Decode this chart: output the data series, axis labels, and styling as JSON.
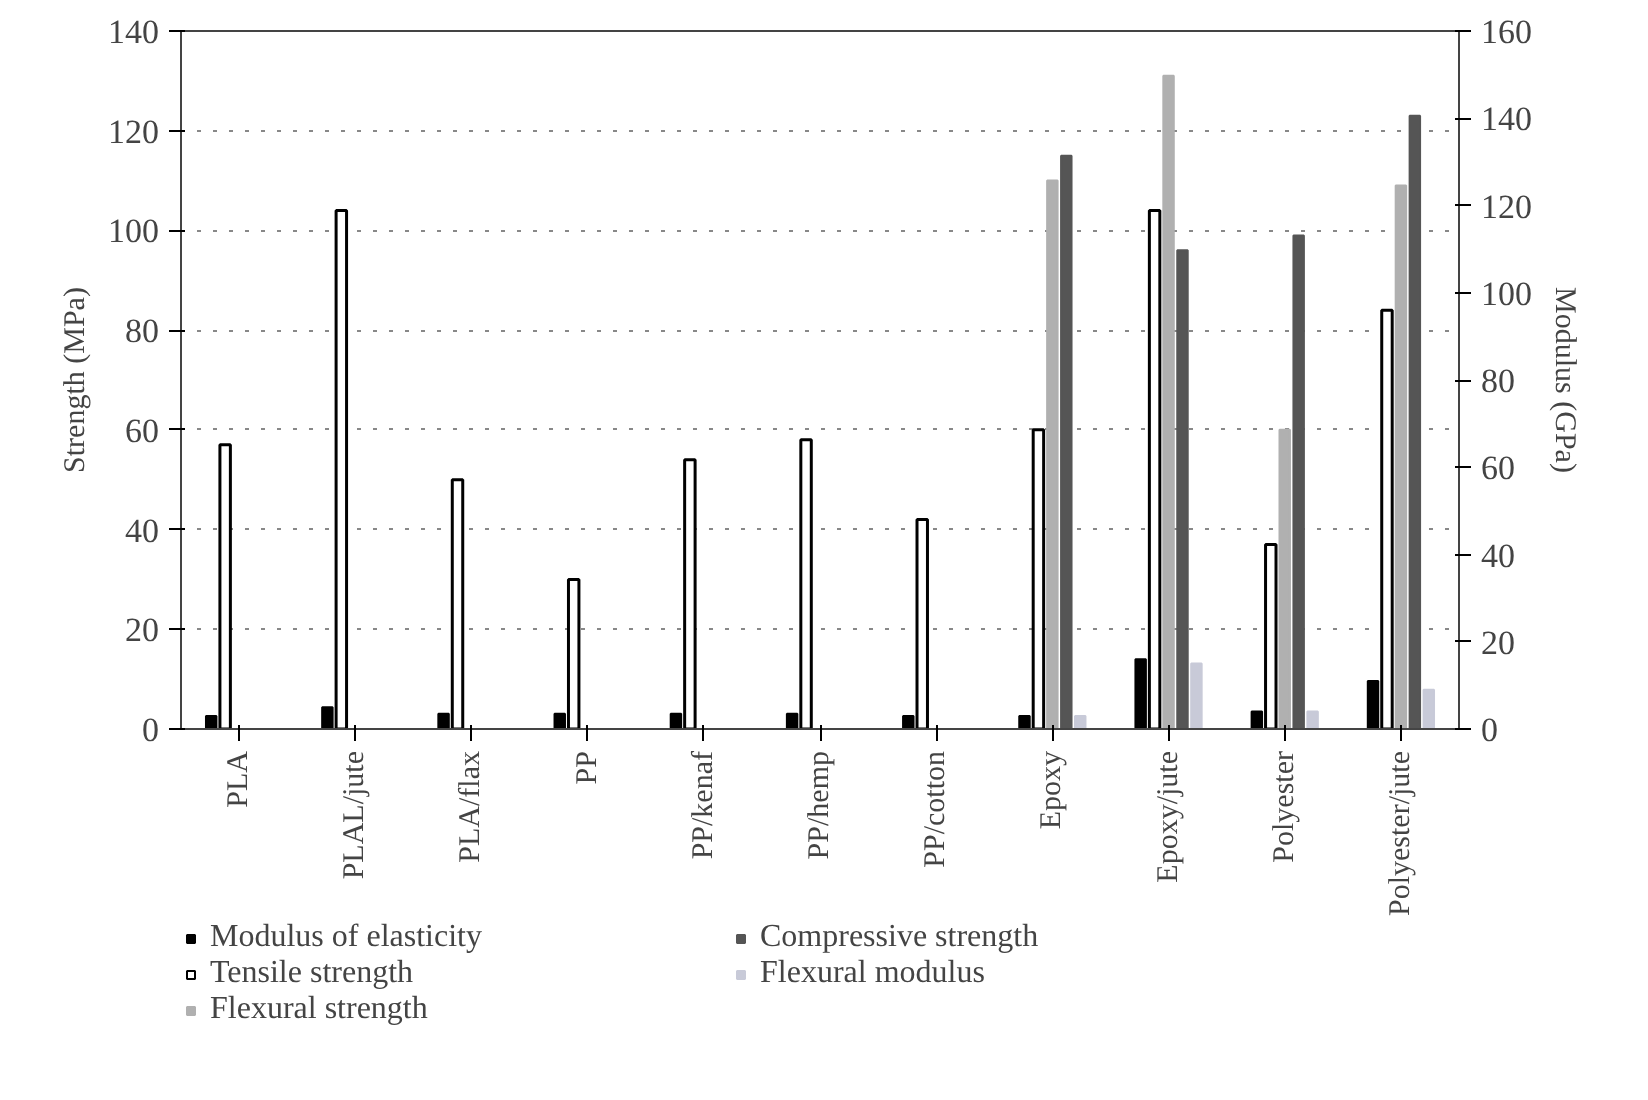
{
  "chart_data": {
    "type": "bar",
    "ylabel": "Strength (MPa)",
    "y2label": "Modulus (GPa)",
    "categories": [
      "PLA",
      "PLAL/jute",
      "PLA/flax",
      "PP",
      "PP/kenaf",
      "PP/hemp",
      "PP/cotton",
      "Epoxy",
      "Epoxy/jute",
      "Polyester",
      "Polyester/jute"
    ],
    "series": [
      {
        "name": "Modulus of elasticity",
        "color": "#000000",
        "axis": "y2",
        "values": [
          3,
          5,
          3.5,
          3.5,
          3.5,
          3.5,
          3,
          3,
          16,
          4,
          11
        ]
      },
      {
        "name": "Tensile strength",
        "color": "#ffffff",
        "values": [
          57,
          104,
          50,
          30,
          54,
          58,
          42,
          60,
          104,
          37,
          84
        ]
      },
      {
        "name": "Flexural strength",
        "color": "#b0b0b0",
        "values": [
          null,
          null,
          null,
          null,
          null,
          null,
          null,
          110,
          131,
          60,
          109
        ]
      },
      {
        "name": "Compressive strength",
        "color": "#555555",
        "values": [
          null,
          null,
          null,
          null,
          null,
          null,
          null,
          115,
          96,
          99,
          123
        ]
      },
      {
        "name": "Flexural modulus",
        "color": "#c8cad8",
        "axis": "y2",
        "values": [
          null,
          null,
          null,
          null,
          null,
          null,
          null,
          3,
          15,
          4,
          9
        ]
      }
    ],
    "ylim": [
      0,
      140
    ],
    "yticks": [
      0,
      20,
      40,
      60,
      80,
      100,
      120,
      140
    ],
    "y2lim": [
      0,
      160
    ],
    "y2ticks": [
      0,
      20,
      40,
      60,
      80,
      100,
      120,
      140,
      160
    ],
    "grid": "y",
    "legend": "bottom"
  }
}
